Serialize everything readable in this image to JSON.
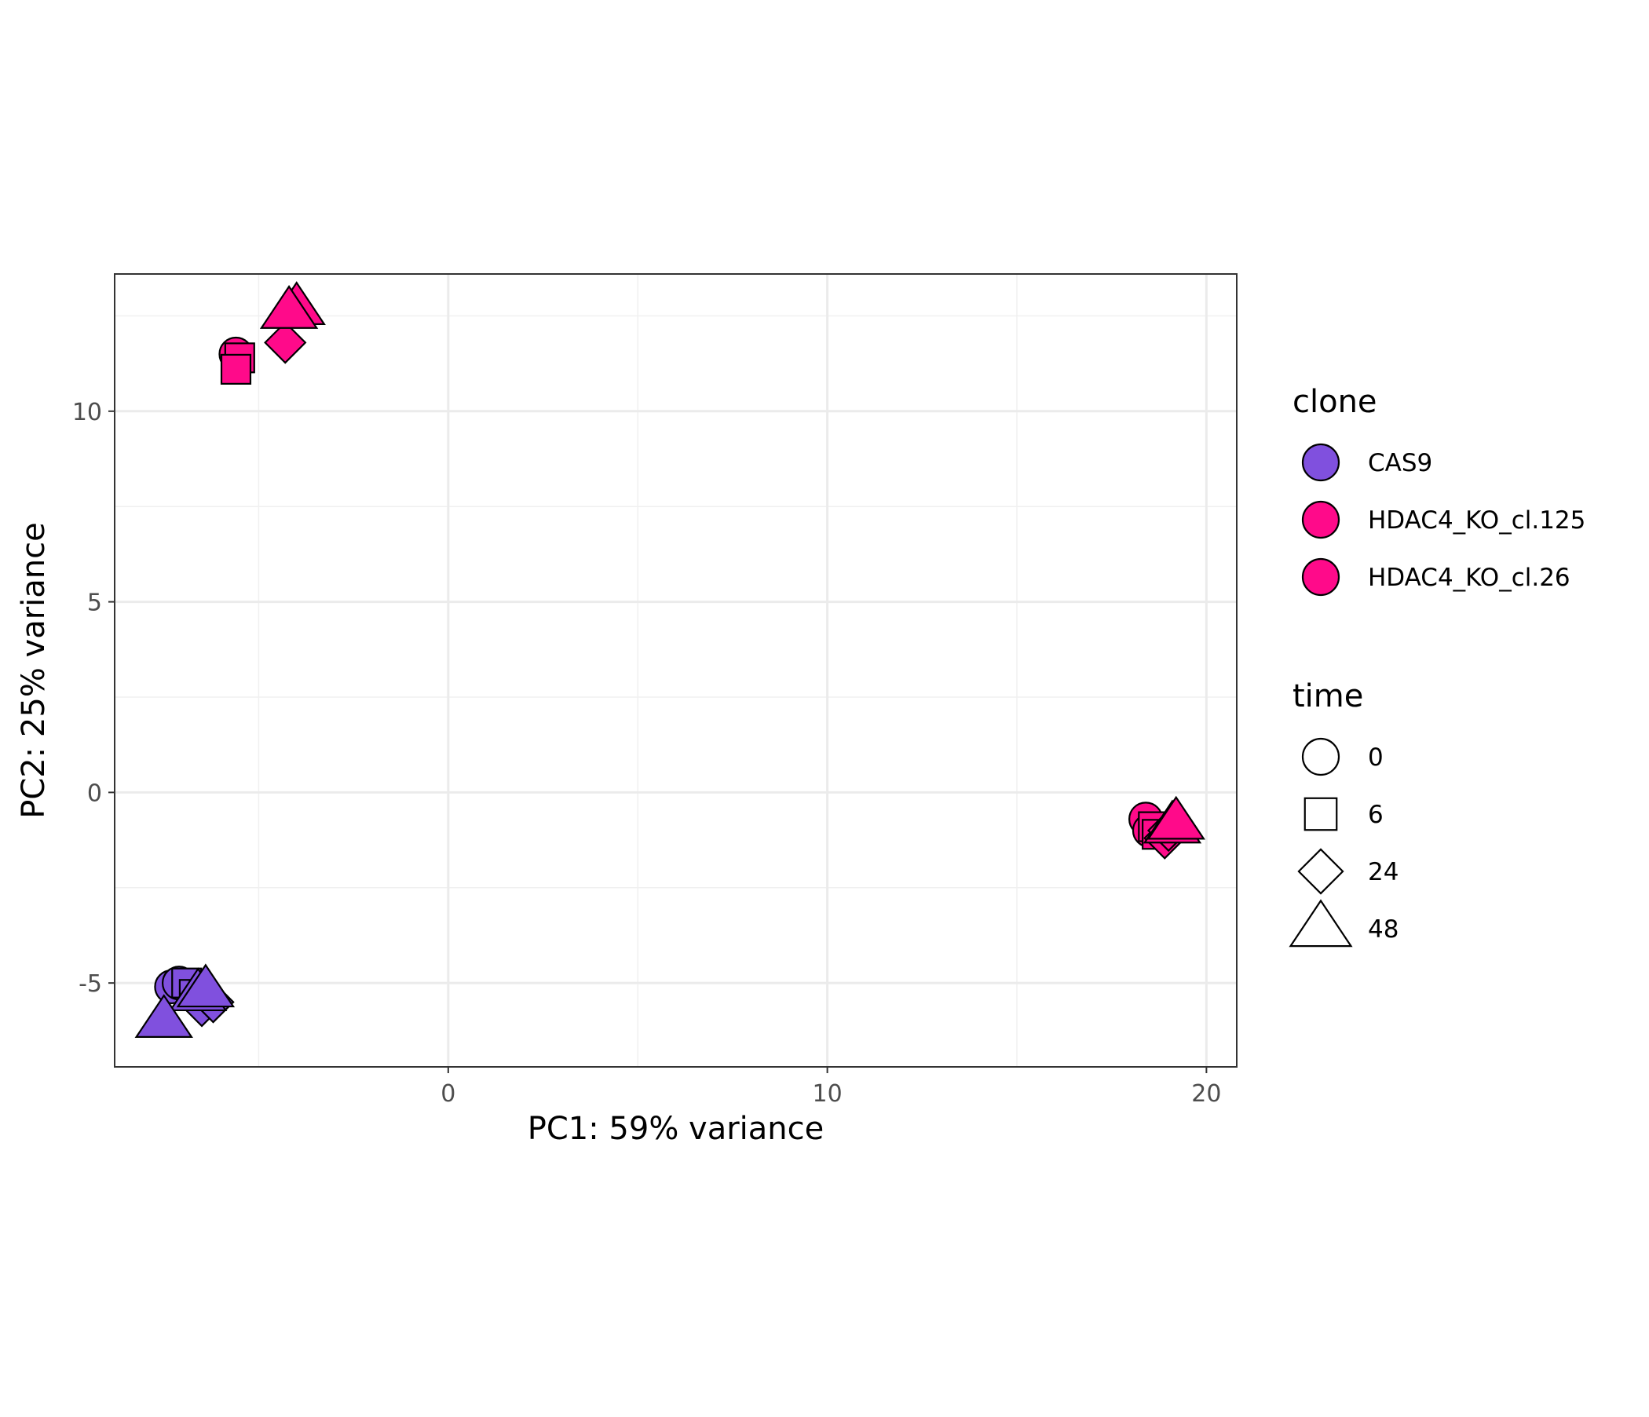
{
  "chart_data": {
    "type": "scatter",
    "xlabel": "PC1: 59% variance",
    "ylabel": "PC2: 25% variance",
    "xlim": [
      -8.8,
      20.8
    ],
    "ylim": [
      -7.2,
      13.6
    ],
    "x_ticks": [
      0,
      10,
      20
    ],
    "y_ticks": [
      -5,
      0,
      5,
      10
    ],
    "x_ticks_minor": [
      -5,
      5,
      15
    ],
    "y_ticks_minor": [
      -2.5,
      2.5,
      7.5,
      12.5
    ],
    "grid": true,
    "legend_position": "right",
    "colors": {
      "CAS9": "#8050de",
      "HDAC4_KO_cl.125": "#ff0a8a",
      "HDAC4_KO_cl.26": "#ff0a8a"
    },
    "legends": [
      {
        "title": "clone",
        "items": [
          {
            "label": "CAS9",
            "shape": "circle",
            "color": "#8050de"
          },
          {
            "label": "HDAC4_KO_cl.125",
            "shape": "circle",
            "color": "#ff0a8a"
          },
          {
            "label": "HDAC4_KO_cl.26",
            "shape": "circle",
            "color": "#ff0a8a"
          }
        ]
      },
      {
        "title": "time",
        "items": [
          {
            "label": "0",
            "shape": "circle"
          },
          {
            "label": "6",
            "shape": "square"
          },
          {
            "label": "24",
            "shape": "diamond"
          },
          {
            "label": "48",
            "shape": "triangle"
          }
        ]
      }
    ],
    "points": [
      {
        "clone": "HDAC4_KO_cl.125",
        "time": "0",
        "x": -5.6,
        "y": 11.5
      },
      {
        "clone": "HDAC4_KO_cl.125",
        "time": "6",
        "x": -5.5,
        "y": 11.4
      },
      {
        "clone": "HDAC4_KO_cl.125",
        "time": "6",
        "x": -5.6,
        "y": 11.1
      },
      {
        "clone": "HDAC4_KO_cl.125",
        "time": "24",
        "x": -4.3,
        "y": 11.8
      },
      {
        "clone": "HDAC4_KO_cl.125",
        "time": "48",
        "x": -4.0,
        "y": 12.7
      },
      {
        "clone": "HDAC4_KO_cl.125",
        "time": "48",
        "x": -4.2,
        "y": 12.6
      },
      {
        "clone": "HDAC4_KO_cl.26",
        "time": "0",
        "x": 18.4,
        "y": -0.7
      },
      {
        "clone": "HDAC4_KO_cl.26",
        "time": "0",
        "x": 18.5,
        "y": -1.0
      },
      {
        "clone": "HDAC4_KO_cl.26",
        "time": "6",
        "x": 18.6,
        "y": -0.9
      },
      {
        "clone": "HDAC4_KO_cl.26",
        "time": "6",
        "x": 18.7,
        "y": -1.1
      },
      {
        "clone": "HDAC4_KO_cl.26",
        "time": "24",
        "x": 18.9,
        "y": -1.2
      },
      {
        "clone": "HDAC4_KO_cl.26",
        "time": "24",
        "x": 19.0,
        "y": -1.0
      },
      {
        "clone": "HDAC4_KO_cl.26",
        "time": "48",
        "x": 19.1,
        "y": -0.9
      },
      {
        "clone": "HDAC4_KO_cl.26",
        "time": "48",
        "x": 19.2,
        "y": -0.8
      },
      {
        "clone": "CAS9",
        "time": "0",
        "x": -7.3,
        "y": -5.1
      },
      {
        "clone": "CAS9",
        "time": "0",
        "x": -7.1,
        "y": -5.0
      },
      {
        "clone": "CAS9",
        "time": "6",
        "x": -6.9,
        "y": -5.0
      },
      {
        "clone": "CAS9",
        "time": "6",
        "x": -6.7,
        "y": -5.3
      },
      {
        "clone": "CAS9",
        "time": "24",
        "x": -6.5,
        "y": -5.6
      },
      {
        "clone": "CAS9",
        "time": "24",
        "x": -6.2,
        "y": -5.5
      },
      {
        "clone": "CAS9",
        "time": "48",
        "x": -6.6,
        "y": -5.3
      },
      {
        "clone": "CAS9",
        "time": "48",
        "x": -6.4,
        "y": -5.2
      },
      {
        "clone": "CAS9",
        "time": "48",
        "x": -7.5,
        "y": -6.0
      }
    ]
  }
}
